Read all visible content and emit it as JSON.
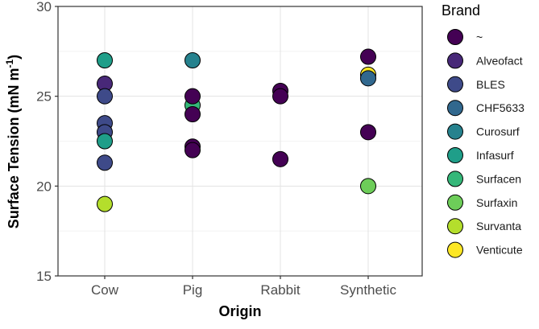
{
  "chart_data": {
    "type": "scatter",
    "xlabel": "Origin",
    "ylabel": "Surface Tension (mN m",
    "ylabel_superscript": "-1",
    "ylabel_close": ")",
    "categories": [
      "Cow",
      "Pig",
      "Rabbit",
      "Synthetic"
    ],
    "ylim": [
      15,
      30
    ],
    "yticks": [
      "15",
      "20",
      "25",
      "30"
    ],
    "grid": true,
    "legend": {
      "title": "Brand",
      "placement": "right",
      "entries": [
        {
          "label": "~",
          "color": "#440154"
        },
        {
          "label": "Alveofact",
          "color": "#482878"
        },
        {
          "label": "BLES",
          "color": "#3E4A89"
        },
        {
          "label": "CHF5633",
          "color": "#31688E"
        },
        {
          "label": "Curosurf",
          "color": "#26828E"
        },
        {
          "label": "Infasurf",
          "color": "#1F9E89"
        },
        {
          "label": "Surfacen",
          "color": "#35B779"
        },
        {
          "label": "Surfaxin",
          "color": "#6DCD59"
        },
        {
          "label": "Survanta",
          "color": "#B4DE2C"
        },
        {
          "label": "Venticute",
          "color": "#FDE725"
        }
      ]
    },
    "points": [
      {
        "x": "Cow",
        "y": 27.0,
        "brand": "Infasurf"
      },
      {
        "x": "Cow",
        "y": 25.7,
        "brand": "Alveofact"
      },
      {
        "x": "Cow",
        "y": 25.0,
        "brand": "BLES"
      },
      {
        "x": "Cow",
        "y": 23.5,
        "brand": "BLES"
      },
      {
        "x": "Cow",
        "y": 23.0,
        "brand": "BLES"
      },
      {
        "x": "Cow",
        "y": 22.5,
        "brand": "Infasurf"
      },
      {
        "x": "Cow",
        "y": 21.3,
        "brand": "BLES"
      },
      {
        "x": "Cow",
        "y": 19.0,
        "brand": "Survanta"
      },
      {
        "x": "Pig",
        "y": 27.0,
        "brand": "Curosurf"
      },
      {
        "x": "Pig",
        "y": 24.5,
        "brand": "Surfacen"
      },
      {
        "x": "Pig",
        "y": 25.0,
        "brand": "~"
      },
      {
        "x": "Pig",
        "y": 24.0,
        "brand": "~"
      },
      {
        "x": "Pig",
        "y": 22.2,
        "brand": "~"
      },
      {
        "x": "Pig",
        "y": 22.0,
        "brand": "~"
      },
      {
        "x": "Rabbit",
        "y": 25.3,
        "brand": "~"
      },
      {
        "x": "Rabbit",
        "y": 25.0,
        "brand": "~"
      },
      {
        "x": "Rabbit",
        "y": 21.5,
        "brand": "~"
      },
      {
        "x": "Synthetic",
        "y": 27.2,
        "brand": "~"
      },
      {
        "x": "Synthetic",
        "y": 26.2,
        "brand": "Venticute"
      },
      {
        "x": "Synthetic",
        "y": 26.0,
        "brand": "CHF5633"
      },
      {
        "x": "Synthetic",
        "y": 23.0,
        "brand": "~"
      },
      {
        "x": "Synthetic",
        "y": 20.0,
        "brand": "Surfaxin"
      }
    ]
  }
}
